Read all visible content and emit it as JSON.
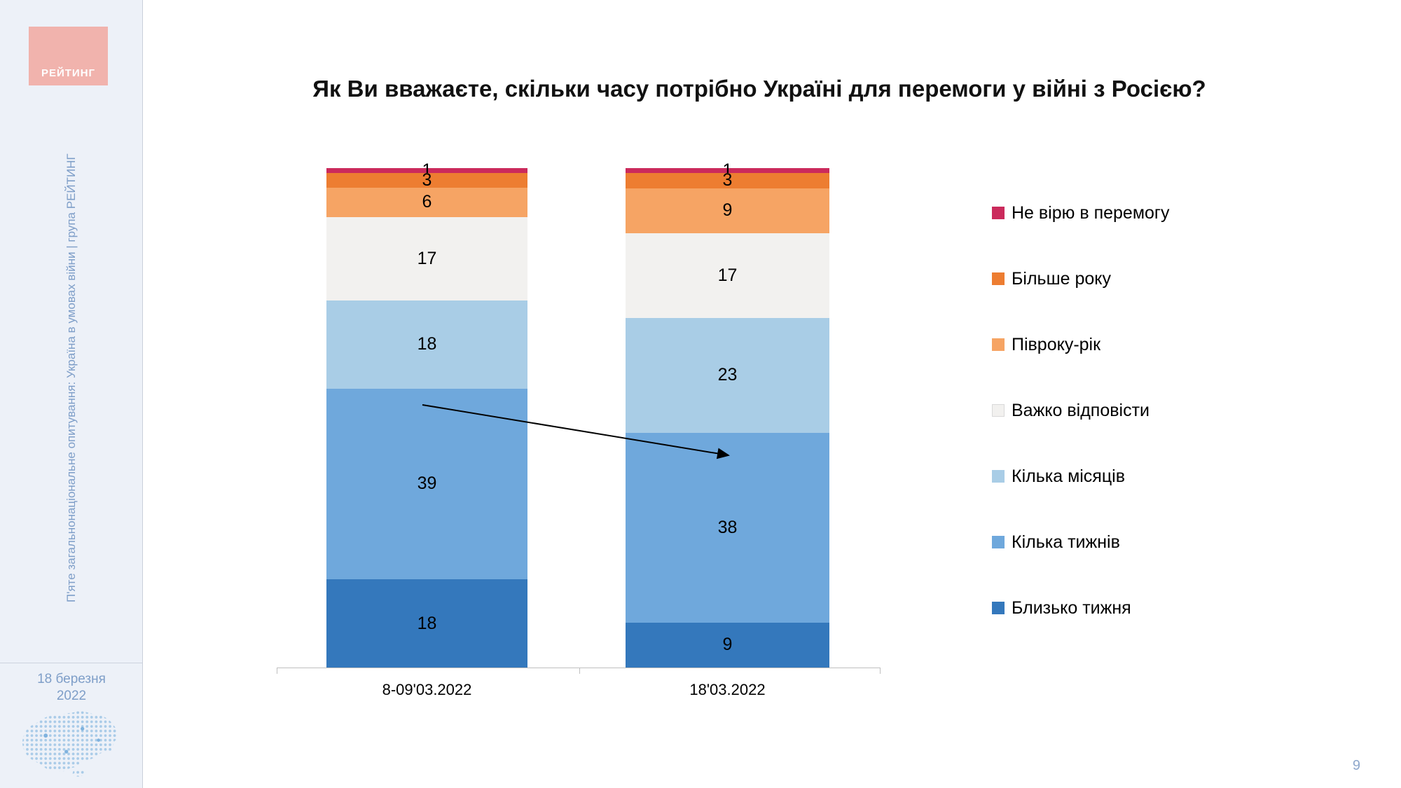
{
  "sidebar": {
    "logo_text": "РЕЙТИНГ",
    "vertical_text": "П'яте загальнонаціональне опитування: Україна в умовах війни | група РЕЙТИНГ",
    "date": "18 березня 2022"
  },
  "page_number": "9",
  "chart_data": {
    "type": "bar",
    "stacked": true,
    "title": "Як Ви вважаєте, скільки часу потрібно Україні для перемоги у війні з Росією?",
    "categories": [
      "8-09'03.2022",
      "18'03.2022"
    ],
    "stack_order": "bottom-to-top",
    "series": [
      {
        "name": "Близько тижня",
        "color": "#3478BC",
        "values": [
          18,
          9
        ]
      },
      {
        "name": "Кілька тижнів",
        "color": "#6FA8DC",
        "values": [
          39,
          38
        ]
      },
      {
        "name": "Кілька місяців",
        "color": "#A9CDE6",
        "values": [
          18,
          23
        ]
      },
      {
        "name": "Важко відповісти",
        "color": "#F2F1EF",
        "values": [
          17,
          17
        ],
        "light": true
      },
      {
        "name": "Півроку-рік",
        "color": "#F6A464",
        "values": [
          6,
          9
        ]
      },
      {
        "name": "Більше року",
        "color": "#ED7D31",
        "values": [
          3,
          3
        ]
      },
      {
        "name": "Не вірю в перемогу",
        "color": "#CB2A5C",
        "values": [
          1,
          1
        ]
      }
    ],
    "legend_position": "right",
    "legend_order_top_to_bottom": [
      "Не вірю в перемогу",
      "Більше року",
      "Півроку-рік",
      "Важко відповісти",
      "Кілька місяців",
      "Кілька тижнів",
      "Близько тижня"
    ],
    "annotation_arrow": "from segment 39 of 8-09'03.2022 to segment 38 of 18'03.2022"
  }
}
